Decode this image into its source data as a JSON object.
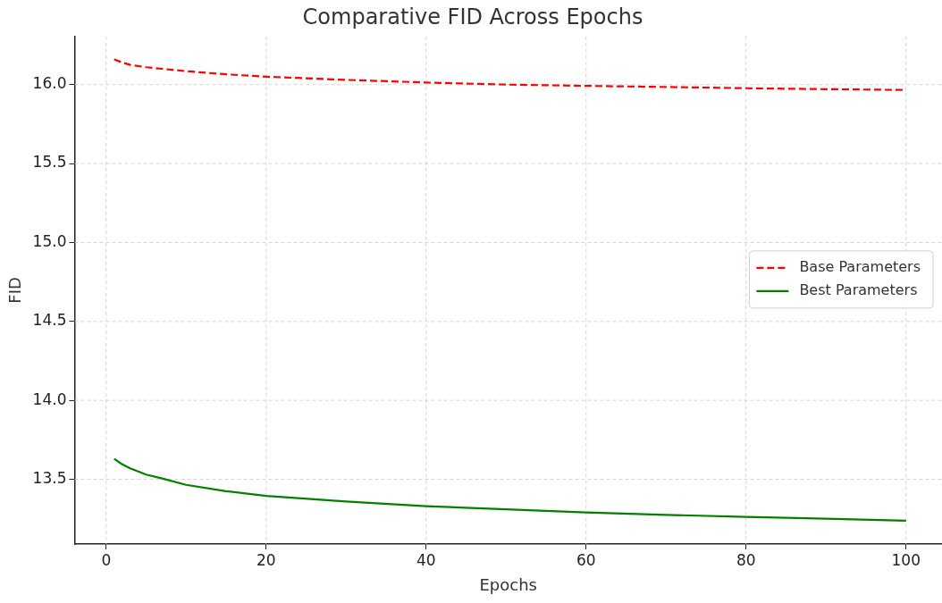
{
  "chart_data": {
    "type": "line",
    "title": "Comparative FID Across Epochs",
    "xlabel": "Epochs",
    "ylabel": "FID",
    "x": [
      1,
      2,
      3,
      5,
      7,
      10,
      15,
      20,
      30,
      40,
      50,
      60,
      70,
      80,
      90,
      100
    ],
    "series": [
      {
        "name": "Base Parameters",
        "color": "#ff0000",
        "line_style": "dashed",
        "values": [
          16.16,
          16.14,
          16.125,
          16.11,
          16.1,
          16.085,
          16.065,
          16.05,
          16.03,
          16.013,
          16.0,
          15.992,
          15.985,
          15.977,
          15.971,
          15.966
        ]
      },
      {
        "name": "Best Parameters",
        "color": "#008000",
        "line_style": "solid",
        "values": [
          13.63,
          13.595,
          13.57,
          13.53,
          13.505,
          13.465,
          13.425,
          13.395,
          13.36,
          13.33,
          13.31,
          13.29,
          13.275,
          13.262,
          13.25,
          13.238
        ]
      }
    ],
    "xlim": [
      -3.95,
      104.5
    ],
    "ylim": [
      13.09,
      16.305
    ],
    "xticks": [
      0,
      20,
      40,
      60,
      80,
      100
    ],
    "yticks": [
      {
        "value": 13.5,
        "label": "13.5"
      },
      {
        "value": 14,
        "label": "14.0"
      },
      {
        "value": 14.5,
        "label": "14.5"
      },
      {
        "value": 15,
        "label": "15.0"
      },
      {
        "value": 15.5,
        "label": "15.5"
      },
      {
        "value": 16,
        "label": "16.0"
      }
    ],
    "grid": true,
    "legend": "right",
    "marker": "none"
  }
}
